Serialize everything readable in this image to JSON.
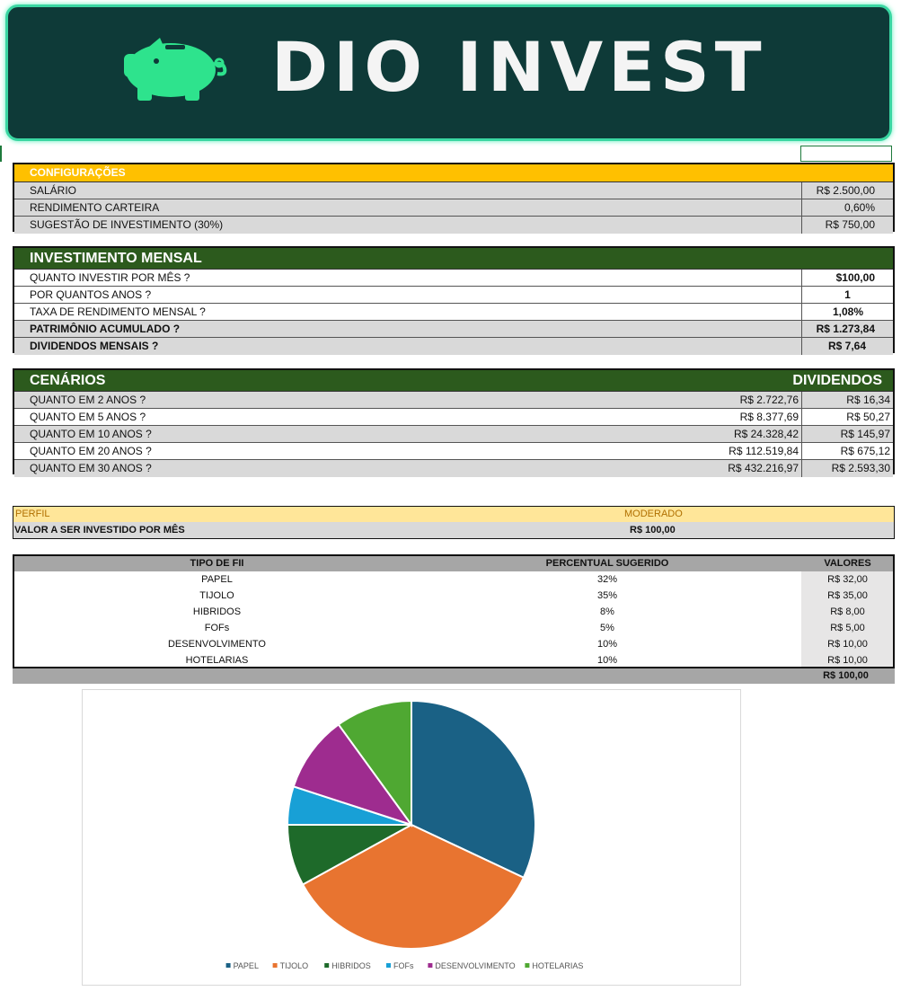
{
  "banner": {
    "title": "DIO INVEST"
  },
  "config": {
    "header": "CONFIGURAÇÕES",
    "rows": [
      {
        "label": "SALÁRIO",
        "value": "R$ 2.500,00"
      },
      {
        "label": "RENDIMENTO CARTEIRA",
        "value": "0,60%"
      },
      {
        "label": "SUGESTÃO DE INVESTIMENTO (30%)",
        "value": "R$ 750,00"
      }
    ]
  },
  "mensal": {
    "header": "INVESTIMENTO MENSAL",
    "rows": [
      {
        "label": "QUANTO INVESTIR POR MÊS ?",
        "value": "$100,00"
      },
      {
        "label": "POR QUANTOS ANOS ?",
        "value": "1"
      },
      {
        "label": "TAXA DE RENDIMENTO MENSAL ?",
        "value": "1,08%"
      },
      {
        "label": "PATRIMÔNIO ACUMULADO ?",
        "value": "R$ 1.273,84"
      },
      {
        "label": "DIVIDENDOS MENSAIS ?",
        "value": "R$ 7,64"
      }
    ]
  },
  "cenarios": {
    "header": "CENÁRIOS",
    "header_right": "DIVIDENDOS",
    "rows": [
      {
        "label": "QUANTO EM 2 ANOS ?",
        "total": "R$ 2.722,76",
        "div": "R$ 16,34"
      },
      {
        "label": "QUANTO EM 5 ANOS ?",
        "total": "R$ 8.377,69",
        "div": "R$ 50,27"
      },
      {
        "label": "QUANTO EM 10 ANOS ?",
        "total": "R$ 24.328,42",
        "div": "R$ 145,97"
      },
      {
        "label": "QUANTO EM 20 ANOS ?",
        "total": "R$ 112.519,84",
        "div": "R$ 675,12"
      },
      {
        "label": "QUANTO EM 30 ANOS ?",
        "total": "R$ 432.216,97",
        "div": "R$ 2.593,30"
      }
    ]
  },
  "perfil": {
    "label": "PERFIL",
    "value": "MODERADO",
    "valor_label": "VALOR A SER INVESTIDO POR MÊS",
    "valor": "R$ 100,00"
  },
  "fii": {
    "headers": [
      "TIPO DE FII",
      "PERCENTUAL SUGERIDO",
      "VALORES"
    ],
    "rows": [
      {
        "tipo": "PAPEL",
        "pct": "32%",
        "valor": "R$ 32,00"
      },
      {
        "tipo": "TIJOLO",
        "pct": "35%",
        "valor": "R$ 35,00"
      },
      {
        "tipo": "HIBRIDOS",
        "pct": "8%",
        "valor": "R$ 8,00"
      },
      {
        "tipo": "FOFs",
        "pct": "5%",
        "valor": "R$ 5,00"
      },
      {
        "tipo": "DESENVOLVIMENTO",
        "pct": "10%",
        "valor": "R$ 10,00"
      },
      {
        "tipo": "HOTELARIAS",
        "pct": "10%",
        "valor": "R$ 10,00"
      }
    ],
    "total": "R$ 100,00"
  },
  "chart_data": {
    "type": "pie",
    "categories": [
      "PAPEL",
      "TIJOLO",
      "HIBRIDOS",
      "FOFs",
      "DESENVOLVIMENTO",
      "HOTELARIAS"
    ],
    "values": [
      32,
      35,
      8,
      5,
      10,
      10
    ],
    "colors": [
      "#1a6185",
      "#e87430",
      "#1e6a2a",
      "#18a0d6",
      "#9e2c8f",
      "#4fa832"
    ],
    "legend": "bottom",
    "title": ""
  }
}
